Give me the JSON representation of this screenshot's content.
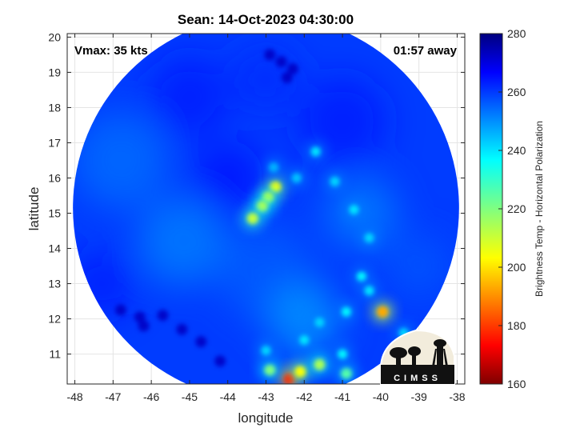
{
  "chart_data": {
    "type": "heatmap",
    "title": "Sean: 14-Oct-2023 04:30:00",
    "xlabel": "longitude",
    "ylabel": "latitude",
    "xlim": [
      -48.2,
      -37.8
    ],
    "ylim": [
      10.15,
      20.1
    ],
    "xticks": [
      -48,
      -47,
      -46,
      -45,
      -44,
      -43,
      -42,
      -41,
      -40,
      -39,
      -38
    ],
    "yticks": [
      11,
      12,
      13,
      14,
      15,
      16,
      17,
      18,
      19,
      20
    ],
    "grid": true,
    "annotations": {
      "vmax": "Vmax: 35 kts",
      "time_away": "01:57 away"
    },
    "colorbar": {
      "label": "Brightness Temp - Horizontal Polarization",
      "range": [
        160,
        280
      ],
      "ticks": [
        160,
        180,
        200,
        220,
        240,
        260,
        280
      ],
      "colormap": "jet"
    },
    "swath": {
      "center": [
        -43.0,
        15.15
      ],
      "radius_deg": 5.05,
      "background_value": 258
    },
    "features": [
      {
        "name": "center-cell-1",
        "lon": -42.75,
        "lat": 15.75,
        "value": 205
      },
      {
        "name": "center-cell-2",
        "lon": -42.95,
        "lat": 15.45,
        "value": 212
      },
      {
        "name": "center-cell-3",
        "lon": -43.1,
        "lat": 15.2,
        "value": 215
      },
      {
        "name": "center-cell-4",
        "lon": -43.35,
        "lat": 14.85,
        "value": 212
      },
      {
        "name": "east-cell",
        "lon": -39.95,
        "lat": 12.2,
        "value": 195
      },
      {
        "name": "south-cell-1",
        "lon": -42.4,
        "lat": 10.3,
        "value": 178
      },
      {
        "name": "south-cell-2",
        "lon": -42.1,
        "lat": 10.5,
        "value": 205
      },
      {
        "name": "south-cell-3",
        "lon": -41.6,
        "lat": 10.7,
        "value": 215
      },
      {
        "name": "south-cell-4",
        "lon": -42.9,
        "lat": 10.55,
        "value": 220
      },
      {
        "name": "south-cell-5",
        "lon": -40.9,
        "lat": 10.45,
        "value": 225
      },
      {
        "name": "band-1",
        "lon": -41.7,
        "lat": 16.75,
        "value": 238
      },
      {
        "name": "band-2",
        "lon": -41.2,
        "lat": 15.9,
        "value": 240
      },
      {
        "name": "band-3",
        "lon": -40.7,
        "lat": 15.1,
        "value": 238
      },
      {
        "name": "band-4",
        "lon": -40.3,
        "lat": 14.3,
        "value": 240
      },
      {
        "name": "band-5",
        "lon": -40.5,
        "lat": 13.2,
        "value": 235
      },
      {
        "name": "band-6",
        "lon": -40.3,
        "lat": 12.8,
        "value": 238
      },
      {
        "name": "band-7",
        "lon": -40.9,
        "lat": 12.2,
        "value": 236
      },
      {
        "name": "band-8",
        "lon": -41.6,
        "lat": 11.9,
        "value": 240
      },
      {
        "name": "band-9",
        "lon": -42.0,
        "lat": 11.4,
        "value": 238
      },
      {
        "name": "band-10",
        "lon": -43.0,
        "lat": 11.1,
        "value": 240
      },
      {
        "name": "band-11",
        "lon": -41.0,
        "lat": 11.0,
        "value": 236
      },
      {
        "name": "band-12",
        "lon": -39.4,
        "lat": 11.6,
        "value": 240
      },
      {
        "name": "band-13",
        "lon": -42.2,
        "lat": 16.0,
        "value": 242
      },
      {
        "name": "band-14",
        "lon": -42.8,
        "lat": 16.3,
        "value": 244
      }
    ]
  },
  "logo": {
    "text": "CIMSS"
  }
}
